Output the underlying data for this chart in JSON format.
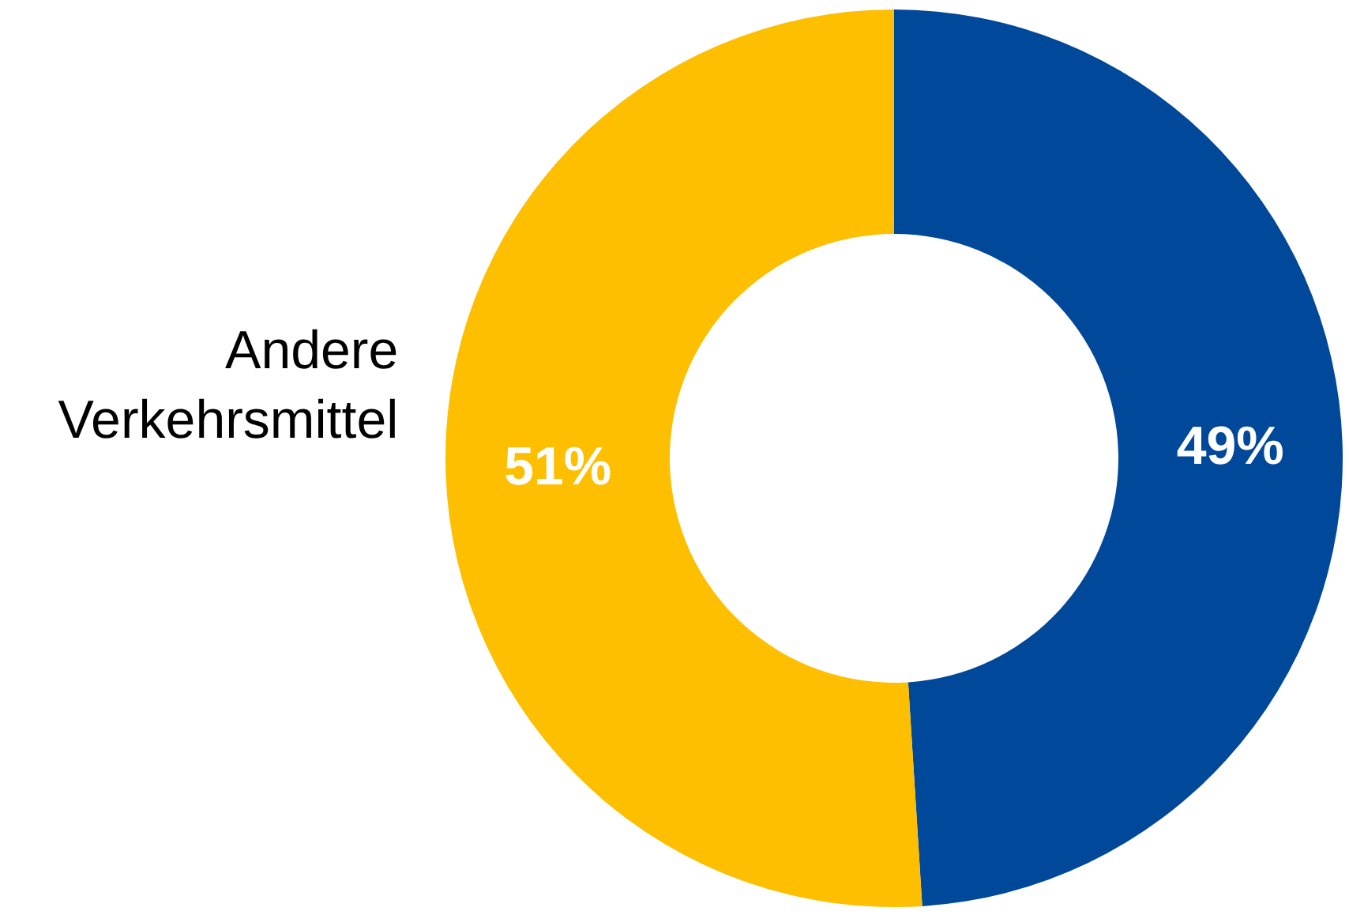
{
  "chart_data": {
    "type": "donut",
    "categories": [
      null,
      "Andere Verkehrsmittel"
    ],
    "values": [
      49,
      51
    ],
    "colors": [
      "#00489a",
      "#fdbf00"
    ],
    "value_labels": [
      "49%",
      "51%"
    ]
  }
}
